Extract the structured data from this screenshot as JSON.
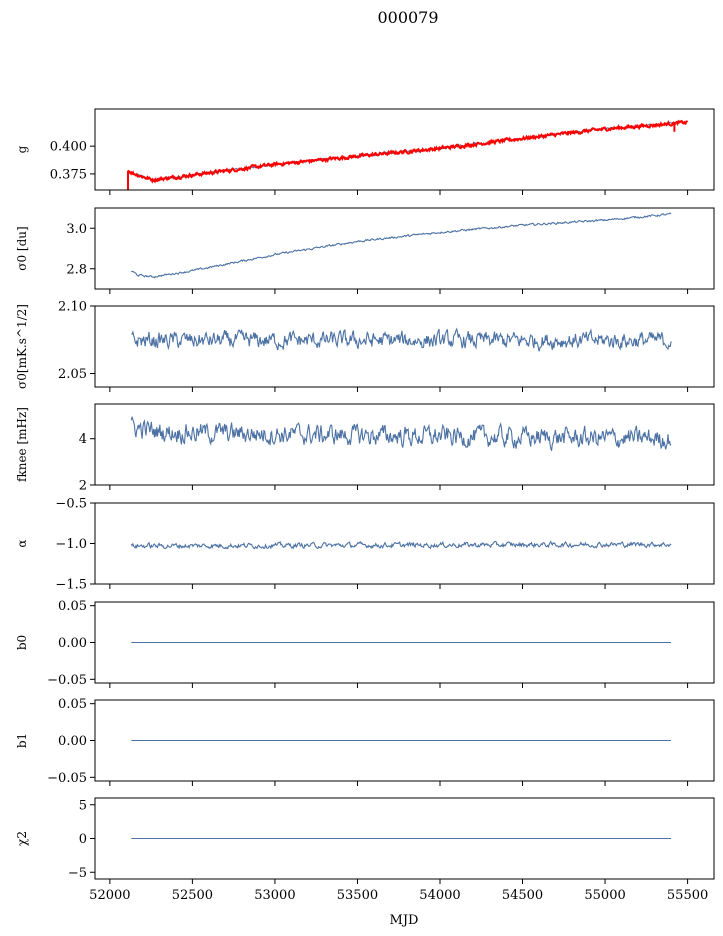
{
  "figure_title": "000079",
  "xlabel": "MJD",
  "x_ticks": [
    52000,
    52500,
    53000,
    53500,
    54000,
    54500,
    55000,
    55500
  ],
  "colors": {
    "line": "#4c72a4",
    "overlay": "#ff0000"
  },
  "chart_data": [
    {
      "type": "line",
      "ylabel": "g",
      "xlim": [
        51910,
        55660
      ],
      "ylim": [
        0.3605,
        0.4335
      ],
      "yticks": [
        0.375,
        0.4
      ],
      "ytick_labels": [
        "0.375",
        "0.400"
      ],
      "y_label_decimals": 3,
      "series": [
        {
          "x": [
            52150,
            52260,
            52500,
            53000,
            53500,
            54000,
            54500,
            55000,
            55430
          ],
          "y": [
            0.375,
            0.3695,
            0.374,
            0.3835,
            0.391,
            0.398,
            0.407,
            0.4155,
            0.4205
          ],
          "noise": 0.0008
        }
      ],
      "overlay": {
        "x": [
          52110,
          52150,
          52260,
          52500,
          53000,
          53500,
          54000,
          54500,
          55000,
          55500
        ],
        "y": [
          0.378,
          0.375,
          0.3695,
          0.374,
          0.3835,
          0.391,
          0.398,
          0.407,
          0.4155,
          0.4215
        ],
        "noise": 0.0012,
        "spikes": [
          [
            52110,
            0.3605,
            0.378
          ],
          [
            55420,
            0.413,
            0.421
          ]
        ]
      }
    },
    {
      "type": "line",
      "ylabel": "σ0 [du]",
      "xlim": [
        51910,
        55660
      ],
      "ylim": [
        2.7,
        3.1
      ],
      "yticks": [
        2.8,
        3.0
      ],
      "ytick_labels": [
        "2.8",
        "3.0"
      ],
      "y_label_decimals": 1,
      "series": [
        {
          "x": [
            52130,
            52170,
            52260,
            52500,
            53000,
            53500,
            54000,
            54500,
            55000,
            55400
          ],
          "y": [
            2.79,
            2.768,
            2.76,
            2.79,
            2.87,
            2.935,
            2.98,
            3.015,
            3.04,
            3.07
          ],
          "noise": 0.004
        }
      ]
    },
    {
      "type": "line",
      "ylabel": "σ0[mK.s^1/2]",
      "xlim": [
        51910,
        55660
      ],
      "ylim": [
        2.04,
        2.1
      ],
      "yticks": [
        2.05,
        2.1
      ],
      "ytick_labels": [
        "2.05",
        "2.10"
      ],
      "y_label_decimals": 2,
      "series": [
        {
          "x": [
            52130,
            55400
          ],
          "y": [
            2.0745,
            2.0745
          ],
          "noise": 0.005
        }
      ]
    },
    {
      "type": "line",
      "ylabel": "fknee [mHz]",
      "xlim": [
        51910,
        55660
      ],
      "ylim": [
        2.0,
        5.5
      ],
      "yticks": [
        2,
        4
      ],
      "ytick_labels": [
        "2",
        "4"
      ],
      "y_label_decimals": 0,
      "series": [
        {
          "x": [
            52130,
            52300,
            53000,
            54000,
            55400
          ],
          "y": [
            4.5,
            4.3,
            4.2,
            4.1,
            4.0
          ],
          "noise": 0.35
        }
      ]
    },
    {
      "type": "line",
      "ylabel": "α",
      "xlim": [
        51910,
        55660
      ],
      "ylim": [
        -1.5,
        -0.5
      ],
      "yticks": [
        -1.5,
        -1.0,
        -0.5
      ],
      "ytick_labels": [
        "−1.5",
        "−1.0",
        "−0.5"
      ],
      "y_label_decimals": 1,
      "series": [
        {
          "x": [
            52130,
            55400
          ],
          "y": [
            -1.03,
            -1.01
          ],
          "noise": 0.025
        }
      ]
    },
    {
      "type": "line",
      "ylabel": "b0",
      "xlim": [
        51910,
        55660
      ],
      "ylim": [
        -0.055,
        0.055
      ],
      "yticks": [
        -0.05,
        0.0,
        0.05
      ],
      "ytick_labels": [
        "−0.05",
        "0.00",
        "0.05"
      ],
      "y_label_decimals": 2,
      "series": [
        {
          "x": [
            52130,
            55400
          ],
          "y": [
            0,
            0
          ],
          "noise": 0
        }
      ]
    },
    {
      "type": "line",
      "ylabel": "b1",
      "xlim": [
        51910,
        55660
      ],
      "ylim": [
        -0.055,
        0.055
      ],
      "yticks": [
        -0.05,
        0.0,
        0.05
      ],
      "ytick_labels": [
        "−0.05",
        "0.00",
        "0.05"
      ],
      "y_label_decimals": 2,
      "series": [
        {
          "x": [
            52130,
            55400
          ],
          "y": [
            0,
            0
          ],
          "noise": 0
        }
      ]
    },
    {
      "type": "line",
      "ylabel": "χ2",
      "xlim": [
        51910,
        55660
      ],
      "ylim": [
        -6,
        6
      ],
      "yticks": [
        -5,
        0,
        5
      ],
      "ytick_labels": [
        "−5",
        "0",
        "5"
      ],
      "y_label_decimals": 0,
      "series": [
        {
          "x": [
            52130,
            55400
          ],
          "y": [
            0,
            0
          ],
          "noise": 0
        }
      ]
    }
  ]
}
